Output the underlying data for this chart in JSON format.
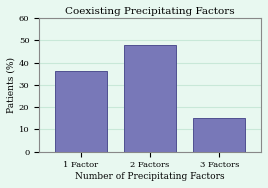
{
  "title": "Coexisting Precipitating Factors",
  "categories": [
    "1 Factor",
    "2 Factors",
    "3 Factors"
  ],
  "values": [
    36,
    48,
    15
  ],
  "bar_color": "#7878b8",
  "bar_edge_color": "#505090",
  "background_color": "#e8f8f0",
  "plot_bg_color": "#e8f8f0",
  "xlabel": "Number of Precipitating Factors",
  "ylabel": "Patients (%)",
  "ylim": [
    0,
    60
  ],
  "yticks": [
    0,
    10,
    20,
    30,
    40,
    50,
    60
  ],
  "title_fontsize": 7.5,
  "axis_label_fontsize": 6.5,
  "tick_fontsize": 6,
  "grid_color": "#c8e8d8",
  "bar_width": 0.75,
  "outer_bg": "#e8f8f0",
  "border_color": "#888888"
}
